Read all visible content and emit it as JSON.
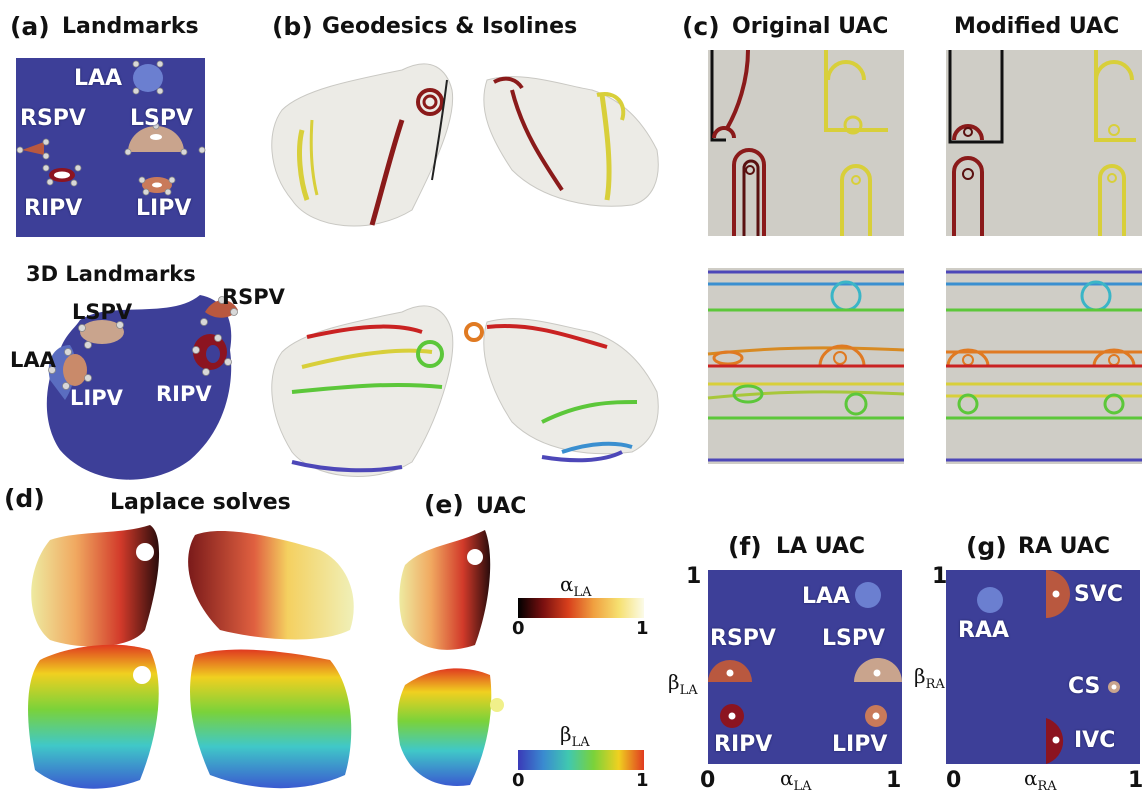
{
  "panels": {
    "a": {
      "letter": "(a)",
      "title": "Landmarks",
      "sub_title": "3D Landmarks"
    },
    "b": {
      "letter": "(b)",
      "title": "Geodesics & Isolines"
    },
    "c": {
      "letter": "(c)",
      "title_left": "Original UAC",
      "title_right": "Modified UAC"
    },
    "d": {
      "letter": "(d)",
      "title": "Laplace solves"
    },
    "e": {
      "letter": "(e)",
      "title": "UAC"
    },
    "f": {
      "letter": "(f)",
      "title": "LA UAC"
    },
    "g": {
      "letter": "(g)",
      "title": "RA UAC"
    }
  },
  "landmarks_2d": {
    "laa": "LAA",
    "rspv": "RSPV",
    "lspv": "LSPV",
    "ripv": "RIPV",
    "lipv": "LIPV"
  },
  "landmarks_3d": {
    "lspv": "LSPV",
    "rspv": "RSPV",
    "laa": "LAA",
    "lipv": "LIPV",
    "ripv": "RIPV"
  },
  "colorbars": {
    "alpha": {
      "label": "α",
      "sub": "LA",
      "min": "0",
      "max": "1"
    },
    "beta": {
      "label": "β",
      "sub": "LA",
      "min": "0",
      "max": "1"
    }
  },
  "la_uac": {
    "y_top": "1",
    "x_zero": "0",
    "x_one": "1",
    "y_label": "β",
    "y_sub": "LA",
    "x_label": "α",
    "x_sub": "LA",
    "labels": {
      "laa": "LAA",
      "rspv": "RSPV",
      "lspv": "LSPV",
      "ripv": "RIPV",
      "lipv": "LIPV"
    }
  },
  "ra_uac": {
    "y_top": "1",
    "x_zero": "0",
    "x_one": "1",
    "y_label": "β",
    "y_sub": "RA",
    "x_label": "α",
    "x_sub": "RA",
    "labels": {
      "raa": "RAA",
      "svc": "SVC",
      "cs": "CS",
      "ivc": "IVC"
    }
  },
  "colors": {
    "uac_blue": "#3d3f98",
    "rspv": "#b9583f",
    "lspv": "#c9a48d",
    "ripv": "#8c1420",
    "lipv": "#c97a5a",
    "laa": "#6b7fd0",
    "mesh": "#ecebe6",
    "plot_bg": "#cfcdc6"
  }
}
